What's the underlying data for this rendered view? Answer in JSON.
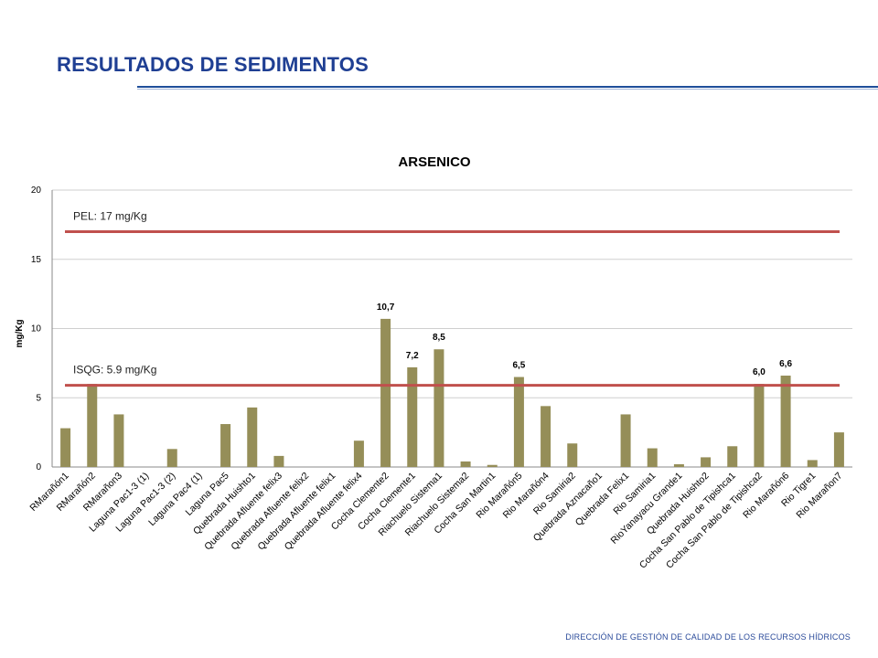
{
  "slide": {
    "title": "RESULTADOS DE SEDIMENTOS",
    "footer": "DIRECCIÓN DE GESTIÓN DE CALIDAD DE LOS RECURSOS HÍDRICOS"
  },
  "colors": {
    "bar": "#958e58",
    "reference_line": "#c0504d",
    "title": "#1f3f93"
  },
  "chart_data": {
    "type": "bar",
    "title": "ARSENICO",
    "ylabel": "mg/Kg",
    "xlabel": "",
    "ylim": [
      0,
      20
    ],
    "yticks": [
      0,
      5,
      10,
      15,
      20
    ],
    "grid": true,
    "categories": [
      "RMarañón1",
      "RMarañón2",
      "RMarañon3",
      "Laguna Pac1-3 (1)",
      "Laguna Pac1-3 (2)",
      "Laguna Pac4 (1)",
      "Laguna Pac5",
      "Quebrada Huishto1",
      "Quebrada Afluente felix3",
      "Quebrada Afluente felix2",
      "Quebrada Afluente felix1",
      "Quebrada Afluente felix4",
      "Cocha Clemente2",
      "Cocha Clemente1",
      "Riachuelo Sistema1",
      "Riachuelo Sistema2",
      "Cocha San Martin1",
      "Rio Marañón5",
      "Rio Marañón4",
      "Rio Samiria2",
      "Quebrada Aznacaño1",
      "Quebrada Felix1",
      "Rio Samiria1",
      "RioYanayacu Grande1",
      "Quebrada Huishto2",
      "Cocha San Pablo de Tipishca1",
      "Cocha San Pablo de Tipishca2",
      "Rio Marañón6",
      "Rio Tigre1",
      "Rio Marañon7"
    ],
    "values": [
      2.8,
      6.0,
      3.8,
      0,
      1.3,
      0,
      3.1,
      4.3,
      0.8,
      0,
      0,
      1.9,
      10.7,
      7.2,
      8.5,
      0.4,
      0.15,
      6.5,
      4.4,
      1.7,
      0,
      3.8,
      1.35,
      0.2,
      0.7,
      1.5,
      6.0,
      6.6,
      0.5,
      2.5
    ],
    "data_labels": [
      {
        "index": 12,
        "text": "10,7"
      },
      {
        "index": 13,
        "text": "7,2"
      },
      {
        "index": 14,
        "text": "8,5"
      },
      {
        "index": 17,
        "text": "6,5"
      },
      {
        "index": 26,
        "text": "6,0"
      },
      {
        "index": 27,
        "text": "6,6"
      }
    ],
    "reference_lines": [
      {
        "label": "PEL: 17 mg/Kg",
        "value": 17
      },
      {
        "label": "ISQG: 5.9 mg/Kg",
        "value": 5.9
      }
    ]
  }
}
